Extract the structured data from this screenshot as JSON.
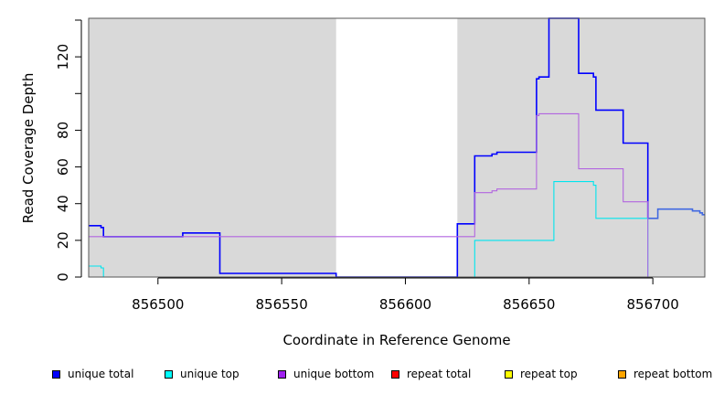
{
  "chart_data": {
    "type": "line",
    "title": "",
    "xlabel": "Coordinate in Reference Genome",
    "ylabel": "Read Coverage Depth",
    "xlim": [
      856472,
      856721
    ],
    "ylim": [
      0,
      141
    ],
    "xticks": [
      856500,
      856550,
      856600,
      856650,
      856700
    ],
    "xtick_labels": [
      "856500",
      "856550",
      "856600",
      "856650",
      "856700"
    ],
    "yticks": [
      0,
      20,
      40,
      60,
      80,
      100,
      120,
      140
    ],
    "ytick_labels": [
      "0",
      "20",
      "40",
      "60",
      "80",
      "",
      "120",
      ""
    ],
    "shaded_regions": [
      {
        "x": [
          856472,
          856572
        ],
        "color": "#d9d9d9"
      },
      {
        "x": [
          856621,
          856721
        ],
        "color": "#d9d9d9"
      }
    ],
    "series": [
      {
        "name": "unique total",
        "color": "#0000ff",
        "points": [
          [
            856472,
            28
          ],
          [
            856477,
            28
          ],
          [
            856477,
            27
          ],
          [
            856478,
            27
          ],
          [
            856478,
            22
          ],
          [
            856510,
            22
          ],
          [
            856510,
            24
          ],
          [
            856525,
            24
          ],
          [
            856525,
            2
          ],
          [
            856572,
            2
          ],
          [
            856572,
            0
          ],
          [
            856621,
            0
          ],
          [
            856621,
            29
          ],
          [
            856628,
            29
          ],
          [
            856628,
            66
          ],
          [
            856635,
            66
          ],
          [
            856635,
            67
          ],
          [
            856637,
            67
          ],
          [
            856637,
            68
          ],
          [
            856653,
            68
          ],
          [
            856653,
            108
          ],
          [
            856654,
            108
          ],
          [
            856654,
            109
          ],
          [
            856658,
            109
          ],
          [
            856658,
            141
          ],
          [
            856670,
            141
          ],
          [
            856670,
            111
          ],
          [
            856676,
            111
          ],
          [
            856676,
            109
          ],
          [
            856677,
            109
          ],
          [
            856677,
            91
          ],
          [
            856688,
            91
          ],
          [
            856688,
            73
          ],
          [
            856698,
            73
          ],
          [
            856698,
            32
          ]
        ]
      },
      {
        "name": "unique total (lighter segment)",
        "color": "#4169e1",
        "points": [
          [
            856698,
            32
          ],
          [
            856702,
            32
          ],
          [
            856702,
            37
          ],
          [
            856716,
            37
          ],
          [
            856716,
            36
          ],
          [
            856719,
            36
          ],
          [
            856719,
            35
          ],
          [
            856720,
            35
          ],
          [
            856720,
            34
          ],
          [
            856721,
            34
          ]
        ]
      },
      {
        "name": "unique top",
        "color": "#00e5ee",
        "points": [
          [
            856472,
            6
          ],
          [
            856477,
            6
          ],
          [
            856477,
            5
          ],
          [
            856478,
            5
          ],
          [
            856478,
            0
          ],
          [
            856628,
            0
          ],
          [
            856628,
            20
          ],
          [
            856660,
            20
          ],
          [
            856660,
            52
          ],
          [
            856676,
            52
          ],
          [
            856676,
            50
          ],
          [
            856677,
            50
          ],
          [
            856677,
            32
          ],
          [
            856698,
            32
          ],
          [
            856698,
            0
          ],
          [
            856721,
            0
          ]
        ]
      },
      {
        "name": "unique bottom",
        "color": "#b266e0",
        "points": [
          [
            856472,
            22
          ],
          [
            856478,
            22
          ],
          [
            856628,
            22
          ],
          [
            856628,
            46
          ],
          [
            856635,
            46
          ],
          [
            856635,
            47
          ],
          [
            856637,
            47
          ],
          [
            856637,
            48
          ],
          [
            856653,
            48
          ],
          [
            856653,
            88
          ],
          [
            856654,
            88
          ],
          [
            856654,
            89
          ],
          [
            856670,
            89
          ],
          [
            856670,
            59
          ],
          [
            856688,
            59
          ],
          [
            856688,
            41
          ],
          [
            856698,
            41
          ],
          [
            856698,
            0
          ],
          [
            856721,
            0
          ]
        ]
      },
      {
        "name": "repeat total",
        "color": "#ff0000",
        "points": [
          [
            856698,
            0
          ],
          [
            856721,
            0
          ]
        ]
      },
      {
        "name": "repeat bottom",
        "color": "#ffa500",
        "points": [
          [
            856621,
            0
          ],
          [
            856698,
            0
          ]
        ]
      }
    ],
    "legend": {
      "placement": "bottom",
      "entries": [
        {
          "label": "unique total",
          "color": "#0000ff"
        },
        {
          "label": "unique top",
          "color": "#00ffff"
        },
        {
          "label": "unique bottom",
          "color": "#a020f0"
        },
        {
          "label": "repeat total",
          "color": "#ff0000"
        },
        {
          "label": "repeat top",
          "color": "#ffff00"
        },
        {
          "label": "repeat bottom",
          "color": "#ffa500"
        }
      ]
    }
  }
}
